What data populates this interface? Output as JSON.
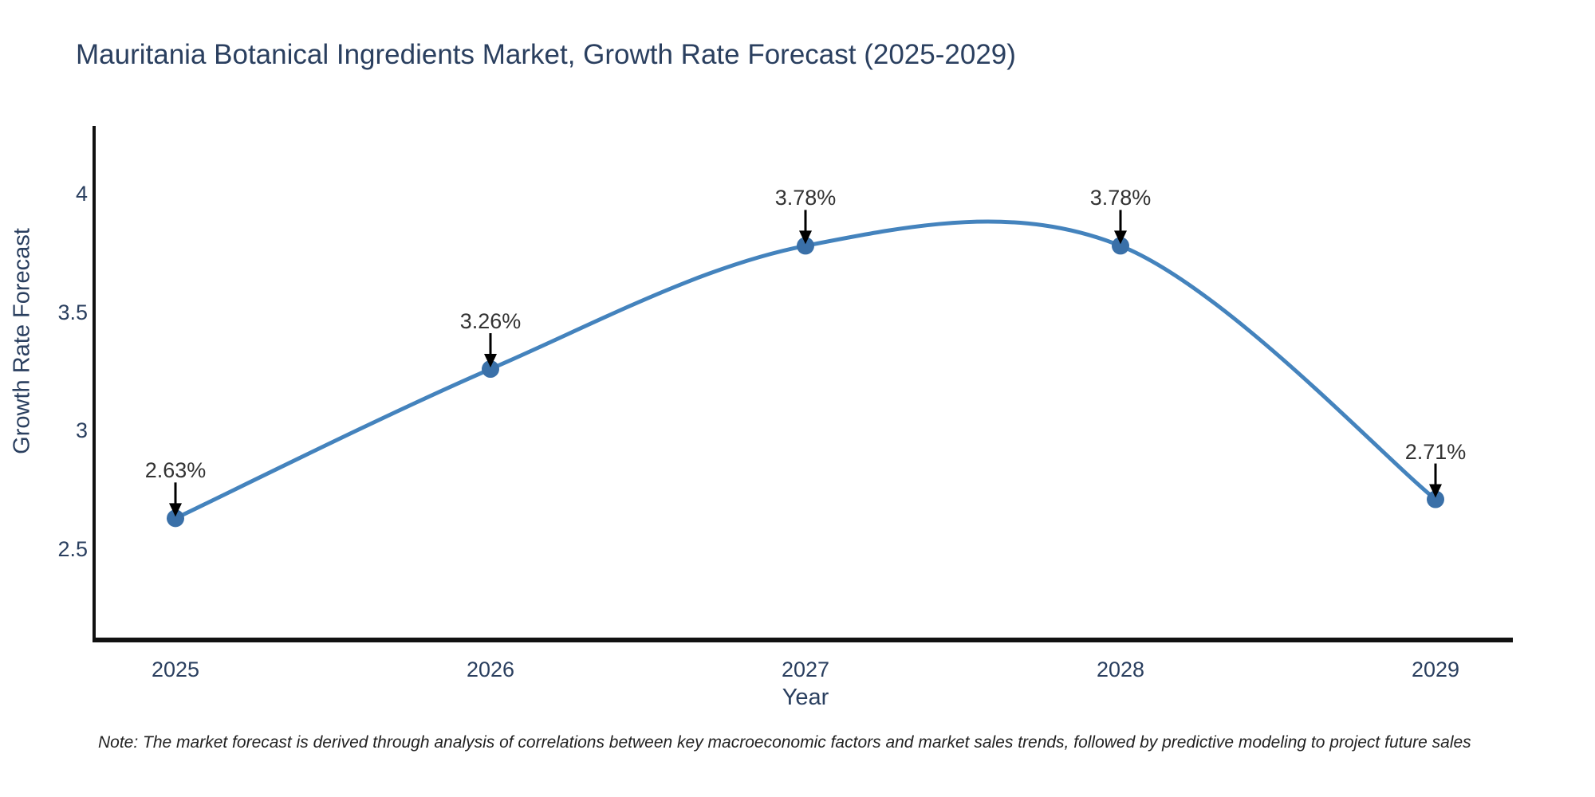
{
  "title": "Mauritania Botanical Ingredients Market, Growth Rate Forecast (2025-2029)",
  "note": "Note: The market forecast is derived through analysis of correlations between key macroeconomic factors and market sales trends, followed by predictive modeling to project future sales",
  "chart_data": {
    "type": "line",
    "title": "Mauritania Botanical Ingredients Market, Growth Rate Forecast (2025-2029)",
    "xlabel": "Year",
    "ylabel": "Growth Rate Forecast",
    "x": [
      "2025",
      "2026",
      "2027",
      "2028",
      "2029"
    ],
    "series": [
      {
        "name": "Growth Rate Forecast",
        "values": [
          2.63,
          3.26,
          3.78,
          3.78,
          2.71
        ],
        "point_labels": [
          "2.63%",
          "3.26%",
          "3.78%",
          "3.78%",
          "2.71%"
        ]
      }
    ],
    "yticks": [
      2.5,
      3,
      3.5,
      4
    ],
    "ylim": [
      2.1,
      4.3
    ],
    "xlim_padding_years": [
      0.26,
      0.25
    ],
    "line_style": "smooth-spline",
    "markers": true,
    "annotations_with_arrows": true,
    "grid": false,
    "legend": false,
    "colors": {
      "line": "#4483bd",
      "marker": "#3a70a8",
      "axis": "#111111",
      "arrow": "#000000",
      "title_text": "#2a3f5f",
      "tick_text": "#2a3f5f",
      "annotation_text": "#333333",
      "note_text": "#222222",
      "background": "#ffffff"
    }
  }
}
